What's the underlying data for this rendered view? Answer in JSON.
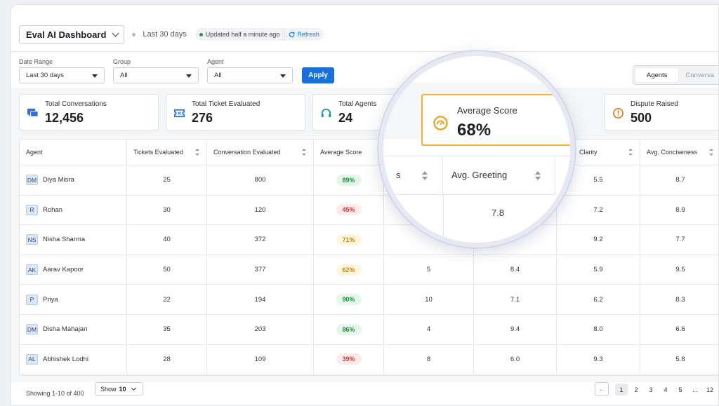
{
  "header": {
    "title": "Eval AI Dashboard",
    "period": "Last 30 days",
    "updated": "Updated half a minute ago",
    "refresh": "Refresh"
  },
  "filters": {
    "date_range_label": "Date Range",
    "date_range_value": "Last 30 days",
    "group_label": "Group",
    "group_value": "All",
    "agent_label": "Agent",
    "agent_value": "All",
    "apply": "Apply"
  },
  "view_toggle": {
    "agents": "Agents",
    "conversations": "Conversa"
  },
  "stats": {
    "total_conversations": {
      "label": "Total Conversations",
      "value": "12,456",
      "icon": "chat-icon"
    },
    "total_tickets": {
      "label": "Total Ticket Evaluated",
      "value": "276",
      "icon": "ticket-icon"
    },
    "total_agents": {
      "label": "Total Agents",
      "value": "24",
      "icon": "headset-icon"
    },
    "average_score": {
      "label": "Average Score",
      "value": "68%",
      "icon": "gauge-icon"
    },
    "dispute_raised": {
      "label": "Dispute Raised",
      "value": "500",
      "icon": "alert-icon"
    }
  },
  "colors": {
    "accent": "#1b6fd8",
    "highlight": "#f0b23a",
    "good": "#1e8a3c",
    "bad": "#c73a3a",
    "warn": "#c28a12"
  },
  "table": {
    "headers": {
      "agent": "Agent",
      "tickets": "Tickets Evaluated",
      "conversations": "Conversation Evaluated",
      "avg_score": "Average Score",
      "col5_tail": "s",
      "avg_greeting": "Avg. Greeting",
      "clarity": "Clarity",
      "conciseness": "Avg. Conciseness"
    },
    "rows": [
      {
        "initials": "DM",
        "name": "Diya Misra",
        "tickets": "25",
        "conversations": "800",
        "score": "89%",
        "tone": "g",
        "col5": "",
        "greeting": "",
        "clarity": "5.5",
        "conciseness": "8.7"
      },
      {
        "initials": "R",
        "name": "Rohan",
        "tickets": "30",
        "conversations": "120",
        "score": "45%",
        "tone": "r",
        "col5": "",
        "greeting": "7.8",
        "clarity": "7.2",
        "conciseness": "8.9"
      },
      {
        "initials": "NS",
        "name": "Nisha Sharma",
        "tickets": "40",
        "conversations": "372",
        "score": "71%",
        "tone": "y",
        "col5": "",
        "greeting": "",
        "clarity": "9.2",
        "conciseness": "7.7"
      },
      {
        "initials": "AK",
        "name": "Aarav Kapoor",
        "tickets": "50",
        "conversations": "377",
        "score": "62%",
        "tone": "y",
        "col5": "5",
        "greeting": "8.4",
        "clarity": "5.9",
        "conciseness": "9.5"
      },
      {
        "initials": "P",
        "name": "Priya",
        "tickets": "22",
        "conversations": "194",
        "score": "90%",
        "tone": "g",
        "col5": "10",
        "greeting": "7.1",
        "clarity": "6.2",
        "conciseness": "8.3"
      },
      {
        "initials": "DM",
        "name": "Disha Mahajan",
        "tickets": "35",
        "conversations": "203",
        "score": "86%",
        "tone": "g",
        "col5": "4",
        "greeting": "9.4",
        "clarity": "8.0",
        "conciseness": "6.6"
      },
      {
        "initials": "AL",
        "name": "Abhishek Lodhi",
        "tickets": "28",
        "conversations": "109",
        "score": "39%",
        "tone": "r",
        "col5": "8",
        "greeting": "6.0",
        "clarity": "9.3",
        "conciseness": "5.8"
      }
    ]
  },
  "footer": {
    "showing": "Showing 1-10 of 400",
    "show_label": "Show",
    "show_value": "10",
    "prev": "←",
    "pages": [
      "1",
      "2",
      "3",
      "4",
      "5",
      "...",
      "12"
    ]
  }
}
